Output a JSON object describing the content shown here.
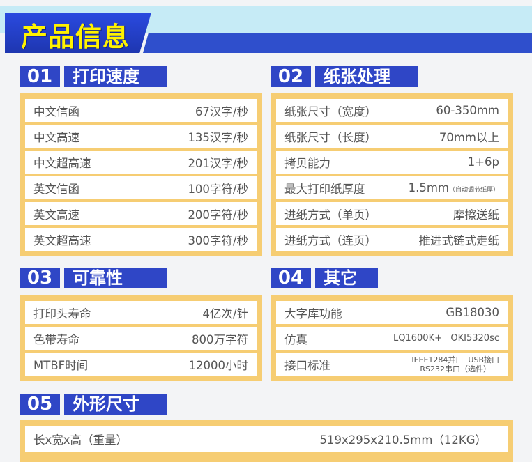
{
  "title": "产品信息",
  "sections": [
    {
      "num": "01",
      "title": "打印速度",
      "rows": [
        {
          "label": "中文信函",
          "value": "67汉字/秒"
        },
        {
          "label": "中文高速",
          "value": "135汉字/秒"
        },
        {
          "label": "中文超高速",
          "value": "201汉字/秒"
        },
        {
          "label": "英文信函",
          "value": "100字符/秒"
        },
        {
          "label": "英文高速",
          "value": "200字符/秒"
        },
        {
          "label": "英文超高速",
          "value": "300字符/秒"
        }
      ]
    },
    {
      "num": "02",
      "title": "纸张处理",
      "rows": [
        {
          "label": "纸张尺寸（宽度）",
          "value": "60-350mm"
        },
        {
          "label": "纸张尺寸（长度）",
          "value": "70mm以上"
        },
        {
          "label": "拷贝能力",
          "value": "1+6p"
        },
        {
          "label": "最大打印纸厚度",
          "value": "1.5mm",
          "note": "（自动调节纸厚）"
        },
        {
          "label": "进纸方式（单页）",
          "value": "摩擦送纸"
        },
        {
          "label": "进纸方式（连页）",
          "value": "推进式链式走纸"
        }
      ]
    },
    {
      "num": "03",
      "title": "可靠性",
      "rows": [
        {
          "label": "打印头寿命",
          "value": "4亿次/针"
        },
        {
          "label": "色带寿命",
          "value": "800万字符"
        },
        {
          "label": "MTBF时间",
          "value": "12000小时"
        }
      ]
    },
    {
      "num": "04",
      "title": "其它",
      "rows": [
        {
          "label": "大字库功能",
          "value": "GB18030"
        },
        {
          "label": "仿真",
          "value": "LQ1600K+   OKI5320sc"
        },
        {
          "label": "接口标准",
          "value": "IEEE1284并口  USB接口",
          "value2": "RS232串口（选件）"
        }
      ]
    },
    {
      "num": "05",
      "title": "外形尺寸",
      "rows": [
        {
          "label": "长x宽x高（重量）",
          "value": "519x295x210.5mm（12KG）"
        }
      ]
    }
  ]
}
